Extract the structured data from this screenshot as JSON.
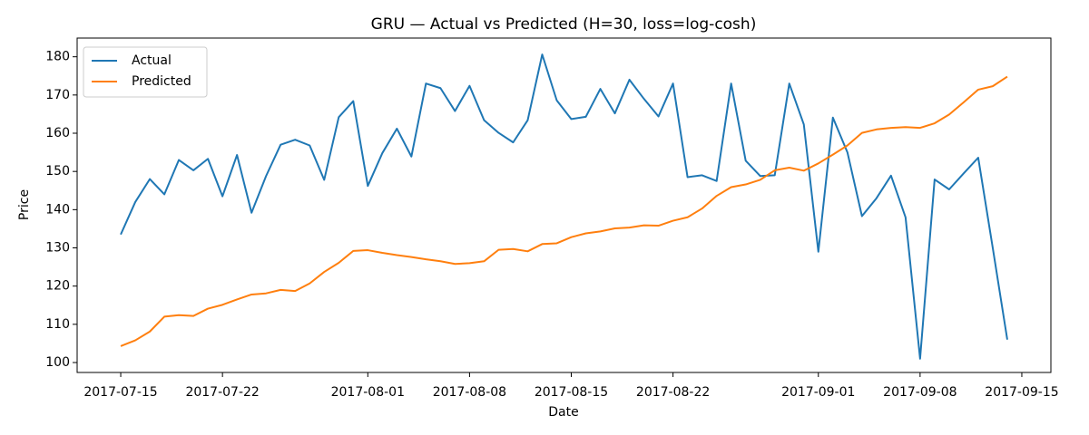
{
  "chart_data": {
    "type": "line",
    "title": "GRU — Actual vs Predicted (H=30, loss=log-cosh)",
    "x_label": "Date",
    "y_label": "Price",
    "x": [
      "2017-07-15",
      "2017-07-16",
      "2017-07-17",
      "2017-07-18",
      "2017-07-19",
      "2017-07-20",
      "2017-07-21",
      "2017-07-22",
      "2017-07-23",
      "2017-07-24",
      "2017-07-25",
      "2017-07-26",
      "2017-07-27",
      "2017-07-28",
      "2017-07-29",
      "2017-07-30",
      "2017-07-31",
      "2017-08-01",
      "2017-08-02",
      "2017-08-03",
      "2017-08-04",
      "2017-08-05",
      "2017-08-06",
      "2017-08-07",
      "2017-08-08",
      "2017-08-09",
      "2017-08-10",
      "2017-08-11",
      "2017-08-12",
      "2017-08-13",
      "2017-08-14",
      "2017-08-15",
      "2017-08-16",
      "2017-08-17",
      "2017-08-18",
      "2017-08-19",
      "2017-08-20",
      "2017-08-21",
      "2017-08-22",
      "2017-08-23",
      "2017-08-24",
      "2017-08-25",
      "2017-08-26",
      "2017-08-27",
      "2017-08-28",
      "2017-08-29",
      "2017-08-30",
      "2017-08-31",
      "2017-09-01",
      "2017-09-02",
      "2017-09-03",
      "2017-09-04",
      "2017-09-05",
      "2017-09-06",
      "2017-09-07",
      "2017-09-08",
      "2017-09-09",
      "2017-09-10",
      "2017-09-11",
      "2017-09-12",
      "2017-09-13",
      "2017-09-14"
    ],
    "series": [
      {
        "name": "Actual",
        "color": "#1f77b4",
        "values": [
          133.5,
          142,
          148,
          144,
          153,
          150.3,
          153.3,
          143.5,
          154.3,
          139.2,
          148.8,
          157,
          158.3,
          156.8,
          147.8,
          164.2,
          168.4,
          146.2,
          154.8,
          161.2,
          153.9,
          173,
          171.8,
          165.8,
          172.4,
          163.4,
          160.1,
          157.6,
          163.4,
          180.6,
          168.6,
          163.7,
          164.3,
          171.6,
          165.2,
          174,
          169,
          164.4,
          173,
          148.5,
          149,
          147.5,
          173,
          152.8,
          148.8,
          149,
          173,
          162.3,
          129,
          164.1,
          155,
          138.3,
          143,
          148.9,
          138,
          101,
          147.9,
          145.3,
          149.5,
          153.6,
          130,
          106
        ]
      },
      {
        "name": "Predicted",
        "color": "#ff7f0e",
        "values": [
          104.3,
          105.8,
          108.1,
          112,
          112.4,
          112.2,
          114.1,
          115.1,
          116.5,
          117.8,
          118.1,
          119,
          118.7,
          120.7,
          123.7,
          126.1,
          129.2,
          129.4,
          128.7,
          128.1,
          127.6,
          127,
          126.5,
          125.8,
          126,
          126.5,
          129.5,
          129.7,
          129.1,
          131,
          131.2,
          132.8,
          133.8,
          134.3,
          135.1,
          135.3,
          135.9,
          135.8,
          137.1,
          138,
          140.3,
          143.6,
          145.9,
          146.6,
          147.8,
          150.3,
          151,
          150.2,
          152.1,
          154.4,
          156.8,
          160.1,
          161,
          161.4,
          161.6,
          161.4,
          162.6,
          164.9,
          168.1,
          171.4,
          172.3,
          174.8
        ]
      }
    ],
    "xlim": [
      "2017-07-12",
      "2017-09-17"
    ],
    "xticks": [
      "2017-07-15",
      "2017-07-22",
      "2017-08-01",
      "2017-08-08",
      "2017-08-15",
      "2017-08-22",
      "2017-09-01",
      "2017-09-08",
      "2017-09-15"
    ],
    "ylim": [
      97.4,
      184.9
    ],
    "yticks": [
      100,
      110,
      120,
      130,
      140,
      150,
      160,
      170,
      180
    ],
    "grid": false,
    "legend": "upper left"
  }
}
